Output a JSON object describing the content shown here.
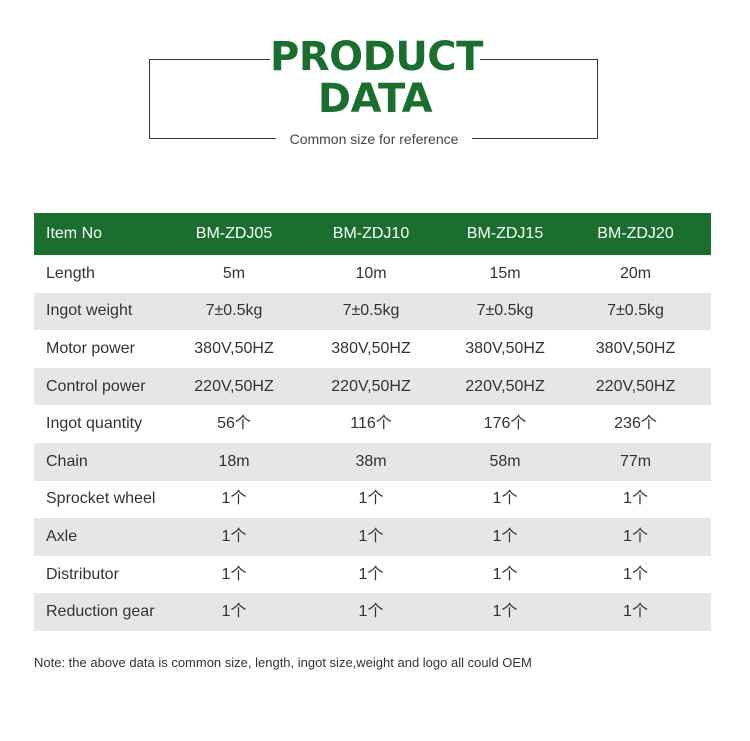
{
  "header": {
    "title_line1": "PRODUCT",
    "title_line2": "DATA",
    "subtitle": "Common size for reference"
  },
  "colors": {
    "brand_green": "#1b6f2e",
    "row_shade": "#e6e6e6"
  },
  "table": {
    "columns": [
      "Item No",
      "BM-ZDJ05",
      "BM-ZDJ10",
      "BM-ZDJ15",
      "BM-ZDJ20"
    ],
    "rows": [
      [
        "Length",
        "5m",
        "10m",
        "15m",
        "20m"
      ],
      [
        "Ingot weight",
        "7±0.5kg",
        "7±0.5kg",
        "7±0.5kg",
        "7±0.5kg"
      ],
      [
        "Motor power",
        "380V,50HZ",
        "380V,50HZ",
        "380V,50HZ",
        "380V,50HZ"
      ],
      [
        "Control power",
        "220V,50HZ",
        "220V,50HZ",
        "220V,50HZ",
        "220V,50HZ"
      ],
      [
        "Ingot quantity",
        "56个",
        "116个",
        "176个",
        "236个"
      ],
      [
        "Chain",
        "18m",
        "38m",
        "58m",
        "77m"
      ],
      [
        "Sprocket wheel",
        "1个",
        "1个",
        "1个",
        "1个"
      ],
      [
        "Axle",
        "1个",
        "1个",
        "1个",
        "1个"
      ],
      [
        "Distributor",
        "1个",
        "1个",
        "1个",
        "1个"
      ],
      [
        "Reduction gear",
        "1个",
        "1个",
        "1个",
        "1个"
      ]
    ]
  },
  "note": "Note: the above data is common size, length, ingot size,weight and logo all could OEM"
}
